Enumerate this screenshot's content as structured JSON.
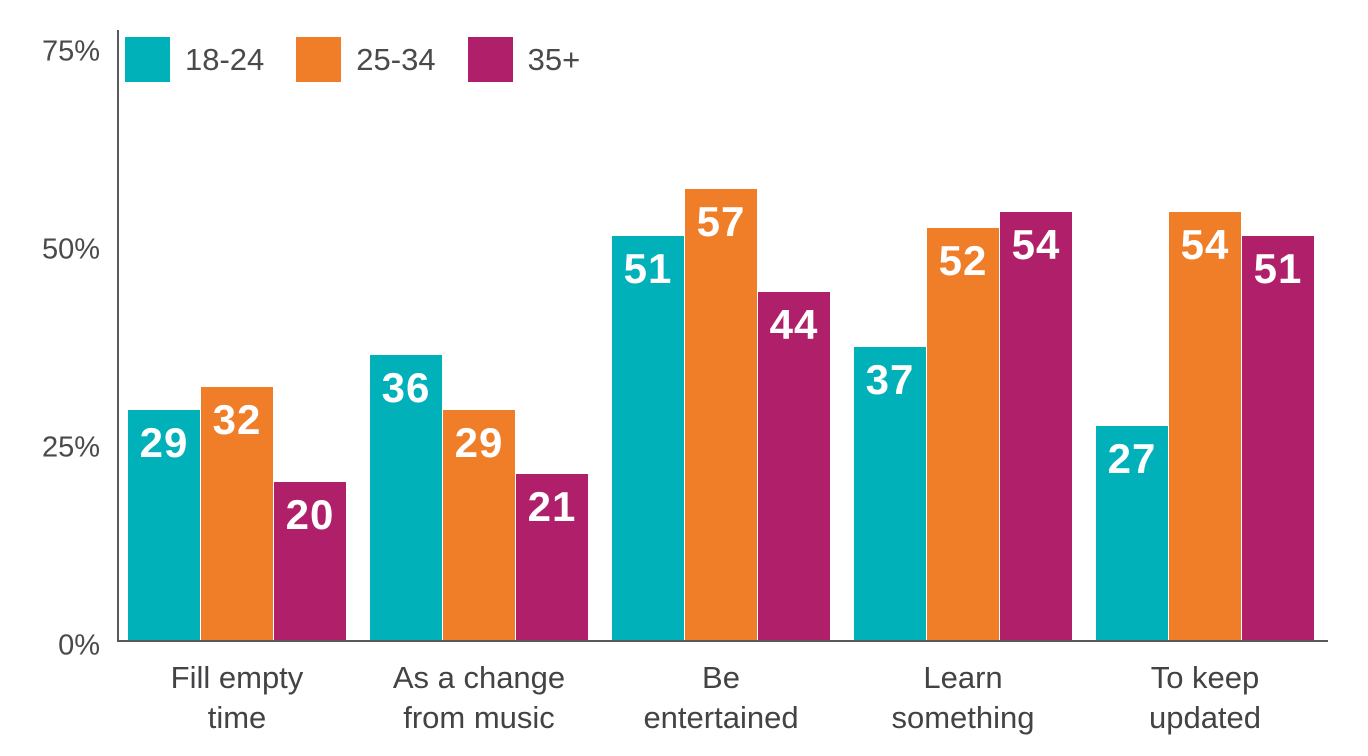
{
  "chart_data": {
    "type": "bar",
    "title": "",
    "xlabel": "",
    "ylabel": "",
    "categories": [
      "Fill empty time",
      "As a change from music",
      "Be entertained",
      "Learn something",
      "To keep updated"
    ],
    "categories_wrapped": [
      [
        "Fill empty",
        "time"
      ],
      [
        "As a change",
        "from music"
      ],
      [
        "Be",
        "entertained"
      ],
      [
        "Learn",
        "something"
      ],
      [
        "To keep",
        "updated"
      ]
    ],
    "series": [
      {
        "name": "18-24",
        "color": "#00b1ba",
        "values": [
          29,
          36,
          51,
          37,
          27
        ]
      },
      {
        "name": "25-34",
        "color": "#f07d28",
        "values": [
          32,
          29,
          57,
          52,
          54
        ]
      },
      {
        "name": "35+",
        "color": "#b01f69",
        "values": [
          20,
          21,
          44,
          54,
          51
        ]
      }
    ],
    "ylim": [
      0,
      75
    ],
    "yticks": [
      {
        "value": 0,
        "label": "0%"
      },
      {
        "value": 25,
        "label": "25%"
      },
      {
        "value": 50,
        "label": "50%"
      },
      {
        "value": 75,
        "label": "75%"
      }
    ],
    "grid": false,
    "legend_position": "top-left",
    "value_labels_shown": true,
    "unit": "percent"
  },
  "colors": {
    "axis": "#59595b",
    "tick_text": "#4a4a4c",
    "category_text": "#434345",
    "value_label_text": "#ffffff",
    "background": "#ffffff"
  }
}
